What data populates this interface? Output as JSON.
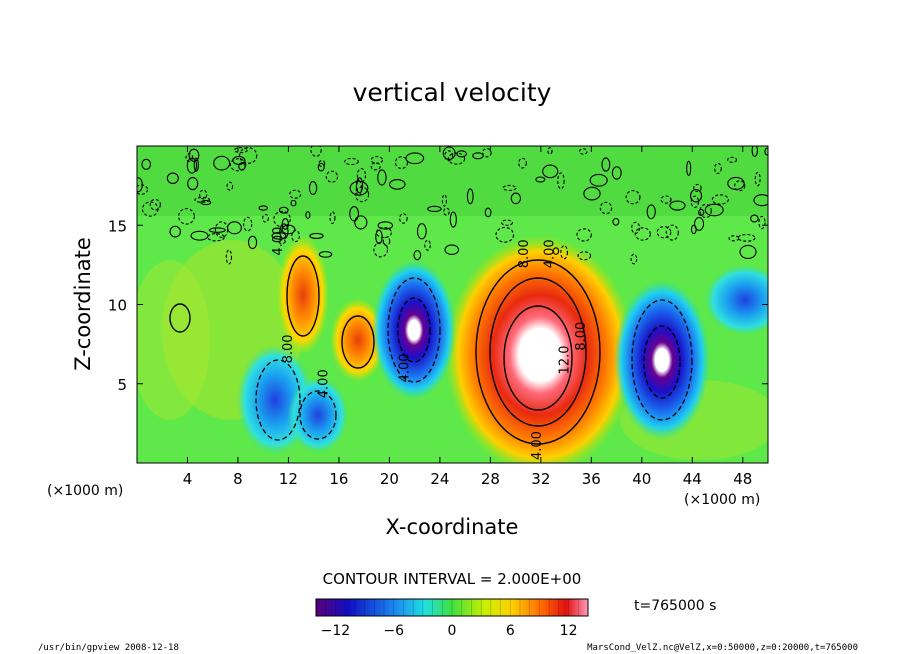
{
  "chart_data": {
    "type": "heatmap",
    "title": "vertical velocity",
    "xlabel": "X-coordinate",
    "ylabel": "Z-coordinate",
    "x_unit": "(×1000 m)",
    "x_unit_right": "(×1000 m)",
    "xlim": [
      0,
      50
    ],
    "ylim": [
      0,
      20
    ],
    "x_ticks": [
      4,
      8,
      12,
      16,
      20,
      24,
      28,
      32,
      36,
      40,
      44,
      48
    ],
    "y_ticks": [
      5,
      10,
      15
    ],
    "contour_interval_text": "CONTOUR INTERVAL = 2.000E+00",
    "contour_labels": [
      {
        "text": "4.00",
        "x": 11.5,
        "z": 14.0
      },
      {
        "text": "8.00",
        "x": 12.3,
        "z": 7.2
      },
      {
        "text": "4.00",
        "x": 15.1,
        "z": 5.0
      },
      {
        "text": "4.00",
        "x": 21.5,
        "z": 6.0
      },
      {
        "text": "4.00",
        "x": 32.0,
        "z": 1.1
      },
      {
        "text": "12.0",
        "x": 34.2,
        "z": 6.5
      },
      {
        "text": "8.00",
        "x": 35.5,
        "z": 8.0
      },
      {
        "text": "8.00",
        "x": 31.0,
        "z": 13.2
      },
      {
        "text": "4.00",
        "x": 33.0,
        "z": 13.2
      }
    ],
    "features": [
      {
        "kind": "updraft",
        "x_center": 32.0,
        "z_center": 7.5,
        "peak": 14
      },
      {
        "kind": "updraft",
        "x_center": 13.0,
        "z_center": 10.5,
        "peak": 8
      },
      {
        "kind": "updraft",
        "x_center": 17.5,
        "z_center": 7.5,
        "peak": 6
      },
      {
        "kind": "downdraft",
        "x_center": 22.0,
        "z_center": 8.0,
        "peak": -14
      },
      {
        "kind": "downdraft",
        "x_center": 41.5,
        "z_center": 6.5,
        "peak": -14
      },
      {
        "kind": "downdraft",
        "x_center": 11.5,
        "z_center": 4.0,
        "peak": -8
      },
      {
        "kind": "downdraft",
        "x_center": 14.0,
        "z_center": 3.0,
        "peak": -8
      }
    ],
    "colorbar": {
      "min": -14,
      "max": 14,
      "ticks": [
        -12,
        -6,
        0,
        6,
        12
      ],
      "colors": [
        "#5a007a",
        "#ff9ab8"
      ]
    },
    "time_label": "t=765000 s"
  },
  "footer": {
    "left": "/usr/bin/gpview   2008-12-18",
    "right": "MarsCond_VelZ.nc@VelZ,x=0:50000,z=0:20000,t=765000"
  }
}
